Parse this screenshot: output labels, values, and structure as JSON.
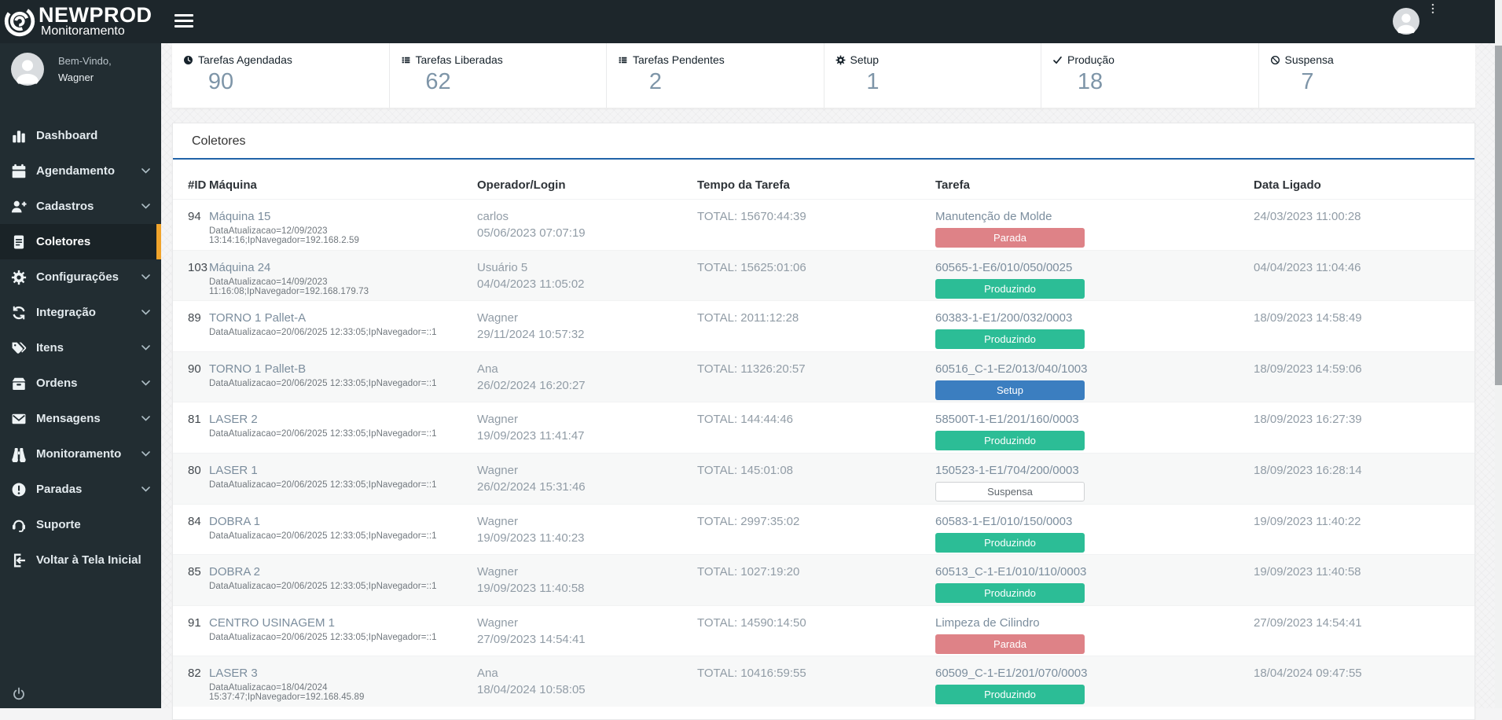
{
  "topbar": {
    "brand": "NEWPROD",
    "brand_sub": "Monitoramento"
  },
  "sidebar": {
    "welcome_line1": "Bem-Vindo,",
    "welcome_line2": "Wagner",
    "items": [
      {
        "label": "Dashboard",
        "icon": "bar-chart-icon",
        "chevron": false,
        "active": false
      },
      {
        "label": "Agendamento",
        "icon": "calendar-icon",
        "chevron": true,
        "active": false
      },
      {
        "label": "Cadastros",
        "icon": "user-plus-icon",
        "chevron": true,
        "active": false
      },
      {
        "label": "Coletores",
        "icon": "document-icon",
        "chevron": false,
        "active": true
      },
      {
        "label": "Configurações",
        "icon": "gear-icon",
        "chevron": true,
        "active": false
      },
      {
        "label": "Integração",
        "icon": "sync-icon",
        "chevron": true,
        "active": false
      },
      {
        "label": "Itens",
        "icon": "tags-icon",
        "chevron": true,
        "active": false
      },
      {
        "label": "Ordens",
        "icon": "box-icon",
        "chevron": true,
        "active": false
      },
      {
        "label": "Mensagens",
        "icon": "envelope-icon",
        "chevron": true,
        "active": false
      },
      {
        "label": "Monitoramento",
        "icon": "binoculars-icon",
        "chevron": true,
        "active": false
      },
      {
        "label": "Paradas",
        "icon": "exclamation-icon",
        "chevron": true,
        "active": false
      },
      {
        "label": "Suporte",
        "icon": "headset-icon",
        "chevron": false,
        "active": false
      },
      {
        "label": "Voltar à Tela Inicial",
        "icon": "exit-icon",
        "chevron": false,
        "active": false
      }
    ]
  },
  "stats": [
    {
      "label": "Tarefas Agendadas",
      "value": "90",
      "icon": "clock-icon"
    },
    {
      "label": "Tarefas Liberadas",
      "value": "62",
      "icon": "list-icon"
    },
    {
      "label": "Tarefas Pendentes",
      "value": "2",
      "icon": "list-icon"
    },
    {
      "label": "Setup",
      "value": "1",
      "icon": "gear-icon"
    },
    {
      "label": "Produção",
      "value": "18",
      "icon": "check-icon"
    },
    {
      "label": "Suspensa",
      "value": "7",
      "icon": "ban-icon"
    }
  ],
  "panel": {
    "title": "Coletores",
    "columns": [
      "#ID",
      "Máquina",
      "Operador/Login",
      "Tempo da Tarefa",
      "Tarefa",
      "Data Ligado"
    ],
    "rows": [
      {
        "id": "94",
        "machine": "Máquina 15",
        "machine_info": "DataAtualizacao=12/09/2023 13:14:16;IpNavegador=192.168.2.59",
        "operator": "carlos",
        "login_time": "05/06/2023 07:07:19",
        "task_time": "TOTAL: 15670:44:39",
        "task": "Manutenção de Molde",
        "status": "Parada",
        "status_type": "parada",
        "data_ligado": "24/03/2023 11:00:28"
      },
      {
        "id": "103",
        "machine": "Máquina 24",
        "machine_info": "DataAtualizacao=14/09/2023 11:16:08;IpNavegador=192.168.179.73",
        "operator": "Usuário 5",
        "login_time": "04/04/2023 11:05:02",
        "task_time": "TOTAL: 15625:01:06",
        "task": "60565-1-E6/010/050/0025",
        "status": "Produzindo",
        "status_type": "produzindo",
        "data_ligado": "04/04/2023 11:04:46"
      },
      {
        "id": "89",
        "machine": "TORNO 1 Pallet-A",
        "machine_info": "DataAtualizacao=20/06/2025 12:33:05;IpNavegador=::1",
        "operator": "Wagner",
        "login_time": "29/11/2024 10:57:32",
        "task_time": "TOTAL: 2011:12:28",
        "task": "60383-1-E1/200/032/0003",
        "status": "Produzindo",
        "status_type": "produzindo",
        "data_ligado": "18/09/2023 14:58:49"
      },
      {
        "id": "90",
        "machine": "TORNO 1 Pallet-B",
        "machine_info": "DataAtualizacao=20/06/2025 12:33:05;IpNavegador=::1",
        "operator": "Ana",
        "login_time": "26/02/2024 16:20:27",
        "task_time": "TOTAL: 11326:20:57",
        "task": "60516_C-1-E2/013/040/1003",
        "status": "Setup",
        "status_type": "setup",
        "data_ligado": "18/09/2023 14:59:06"
      },
      {
        "id": "81",
        "machine": "LASER 2",
        "machine_info": "DataAtualizacao=20/06/2025 12:33:05;IpNavegador=::1",
        "operator": "Wagner",
        "login_time": "19/09/2023 11:41:47",
        "task_time": "TOTAL: 144:44:46",
        "task": "58500T-1-E1/201/160/0003",
        "status": "Produzindo",
        "status_type": "produzindo",
        "data_ligado": "18/09/2023 16:27:39"
      },
      {
        "id": "80",
        "machine": "LASER 1",
        "machine_info": "DataAtualizacao=20/06/2025 12:33:05;IpNavegador=::1",
        "operator": "Wagner",
        "login_time": "26/02/2024 15:31:46",
        "task_time": "TOTAL: 145:01:08",
        "task": "150523-1-E1/704/200/0003",
        "status": "Suspensa",
        "status_type": "suspensa",
        "data_ligado": "18/09/2023 16:28:14"
      },
      {
        "id": "84",
        "machine": "DOBRA 1",
        "machine_info": "DataAtualizacao=20/06/2025 12:33:05;IpNavegador=::1",
        "operator": "Wagner",
        "login_time": "19/09/2023 11:40:23",
        "task_time": "TOTAL: 2997:35:02",
        "task": "60583-1-E1/010/150/0003",
        "status": "Produzindo",
        "status_type": "produzindo",
        "data_ligado": "19/09/2023 11:40:22"
      },
      {
        "id": "85",
        "machine": "DOBRA 2",
        "machine_info": "DataAtualizacao=20/06/2025 12:33:05;IpNavegador=::1",
        "operator": "Wagner",
        "login_time": "19/09/2023 11:40:58",
        "task_time": "TOTAL: 1027:19:20",
        "task": "60513_C-1-E1/010/110/0003",
        "status": "Produzindo",
        "status_type": "produzindo",
        "data_ligado": "19/09/2023 11:40:58"
      },
      {
        "id": "91",
        "machine": "CENTRO USINAGEM 1",
        "machine_info": "DataAtualizacao=20/06/2025 12:33:05;IpNavegador=::1",
        "operator": "Wagner",
        "login_time": "27/09/2023 14:54:41",
        "task_time": "TOTAL: 14590:14:50",
        "task": "Limpeza de Cilindro",
        "status": "Parada",
        "status_type": "parada",
        "data_ligado": "27/09/2023 14:54:41"
      },
      {
        "id": "82",
        "machine": "LASER 3",
        "machine_info": "DataAtualizacao=18/04/2024 15:37:47;IpNavegador=192.168.45.89",
        "operator": "Ana",
        "login_time": "18/04/2024 10:58:05",
        "task_time": "TOTAL: 10416:59:55",
        "task": "60509_C-1-E1/201/070/0003",
        "status": "Produzindo",
        "status_type": "produzindo",
        "data_ligado": "18/04/2024 09:47:55"
      }
    ]
  },
  "colors": {
    "topbar_bg": "#1d262b",
    "sidebar_bg": "#222d32",
    "active_accent": "#f0a32b",
    "panel_accent_line": "#2163a8",
    "stat_value": "#7e95a8",
    "badge_parada": "#de8287",
    "badge_produzindo": "#2cbd96",
    "badge_setup": "#3b7ec0",
    "badge_suspensa_border": "#cfd2d4"
  }
}
